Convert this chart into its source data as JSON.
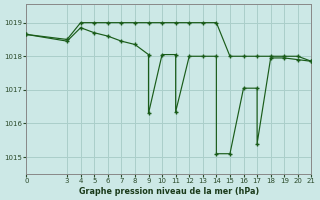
{
  "title": "Graphe pression niveau de la mer (hPa)",
  "bg_color": "#cce8e6",
  "line_color": "#1a5c1a",
  "grid_color": "#aaceca",
  "spine_color": "#888888",
  "xlim": [
    0,
    21
  ],
  "ylim": [
    1014.5,
    1019.55
  ],
  "xticks": [
    0,
    3,
    4,
    5,
    6,
    7,
    8,
    9,
    10,
    11,
    12,
    13,
    14,
    15,
    16,
    17,
    18,
    19,
    20,
    21
  ],
  "yticks": [
    1015,
    1016,
    1017,
    1018,
    1019
  ],
  "upper_x": [
    0,
    3,
    4,
    5,
    6,
    7,
    8,
    9,
    10,
    11,
    12,
    13,
    14,
    15,
    16,
    17,
    18,
    19,
    20,
    21
  ],
  "upper_y": [
    1018.65,
    1018.5,
    1019.0,
    1019.0,
    1019.0,
    1019.0,
    1019.0,
    1019.0,
    1019.0,
    1019.0,
    1019.0,
    1019.0,
    1019.0,
    1018.0,
    1018.0,
    1018.0,
    1018.0,
    1018.0,
    1018.0,
    1017.85
  ],
  "lower_x": [
    0,
    3,
    4,
    5,
    6,
    7,
    8,
    9,
    9,
    10,
    11,
    11,
    12,
    13,
    14,
    14,
    15,
    16,
    17,
    17,
    18,
    19,
    20,
    21
  ],
  "lower_y": [
    1018.65,
    1018.45,
    1018.85,
    1018.7,
    1018.6,
    1018.45,
    1018.35,
    1018.05,
    1016.3,
    1018.05,
    1018.05,
    1016.35,
    1018.0,
    1018.0,
    1018.0,
    1015.1,
    1015.1,
    1017.05,
    1017.05,
    1015.4,
    1017.95,
    1017.95,
    1017.9,
    1017.85
  ],
  "upper_markers_x": [
    0,
    3,
    4,
    5,
    6,
    7,
    8,
    9,
    10,
    11,
    12,
    13,
    14,
    15,
    16,
    17,
    18,
    19,
    20,
    21
  ],
  "upper_markers_y": [
    1018.65,
    1018.5,
    1019.0,
    1019.0,
    1019.0,
    1019.0,
    1019.0,
    1019.0,
    1019.0,
    1019.0,
    1019.0,
    1019.0,
    1019.0,
    1018.0,
    1018.0,
    1018.0,
    1018.0,
    1018.0,
    1018.0,
    1017.85
  ],
  "lower_markers_x": [
    0,
    3,
    4,
    5,
    6,
    7,
    8,
    9,
    9,
    10,
    11,
    11,
    12,
    13,
    14,
    14,
    15,
    16,
    17,
    17,
    18,
    19,
    20,
    21
  ],
  "lower_markers_y": [
    1018.65,
    1018.45,
    1018.85,
    1018.7,
    1018.6,
    1018.45,
    1018.35,
    1018.05,
    1016.3,
    1018.05,
    1018.05,
    1016.35,
    1018.0,
    1018.0,
    1018.0,
    1015.1,
    1015.1,
    1017.05,
    1017.05,
    1015.4,
    1017.95,
    1017.95,
    1017.9,
    1017.85
  ]
}
